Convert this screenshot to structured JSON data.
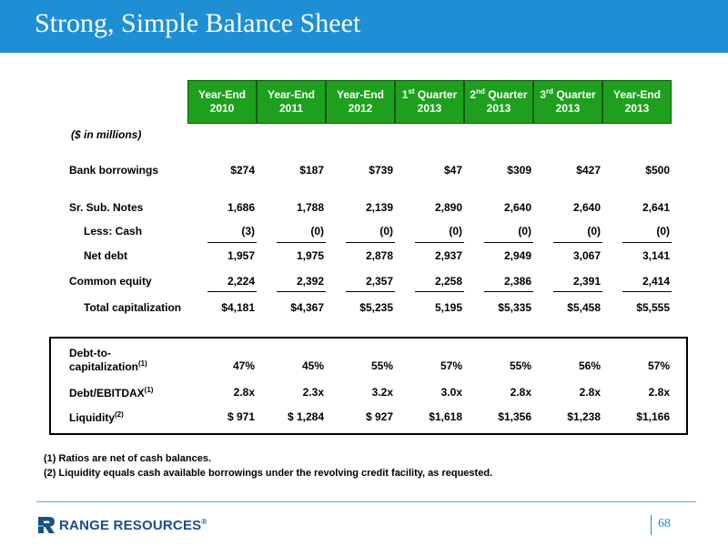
{
  "title": "Strong, Simple Balance Sheet",
  "columns": [
    {
      "line1": "Year-End",
      "sup": "",
      "line1_rest": "",
      "line2": "2010"
    },
    {
      "line1": "Year-End",
      "sup": "",
      "line1_rest": "",
      "line2": "2011"
    },
    {
      "line1": "Year-End",
      "sup": "",
      "line1_rest": "",
      "line2": "2012"
    },
    {
      "line1": "1",
      "sup": "st",
      "line1_rest": " Quarter",
      "line2": "2013"
    },
    {
      "line1": "2",
      "sup": "nd",
      "line1_rest": " Quarter",
      "line2": "2013"
    },
    {
      "line1": "3",
      "sup": "rd",
      "line1_rest": " Quarter",
      "line2": "2013"
    },
    {
      "line1": "Year-End",
      "sup": "",
      "line1_rest": "",
      "line2": "2013"
    }
  ],
  "units_label": "($ in millions)",
  "rows": [
    {
      "label": "Bank borrowings",
      "values": [
        "$274",
        "$187",
        "$739",
        "$47",
        "$309",
        "$427",
        "$500"
      ]
    },
    {
      "label": "Sr. Sub. Notes",
      "values": [
        "1,686",
        "1,788",
        "2,139",
        "2,890",
        "2,640",
        "2,640",
        "2,641"
      ]
    },
    {
      "label": "Less: Cash",
      "values": [
        "(3)",
        "(0)",
        "(0)",
        "(0)",
        "(0)",
        "(0)",
        "(0)"
      ]
    },
    {
      "label": "Net debt",
      "values": [
        "1,957",
        "1,975",
        "2,878",
        "2,937",
        "2,949",
        "3,067",
        "3,141"
      ]
    },
    {
      "label": "Common equity",
      "values": [
        "2,224",
        "2,392",
        "2,357",
        "2,258",
        "2,386",
        "2,391",
        "2,414"
      ]
    },
    {
      "label": "Total capitalization",
      "values": [
        "$4,181",
        "$4,367",
        "$5,235",
        "5,195",
        "$5,335",
        "$5,458",
        "$5,555"
      ]
    }
  ],
  "ratios": [
    {
      "label_line1": "Debt-to-",
      "label_line2": "capitalization",
      "sup": "(1)",
      "values": [
        "47%",
        "45%",
        "55%",
        "57%",
        "55%",
        "56%",
        "57%"
      ]
    },
    {
      "label_line1": "",
      "label_line2": "Debt/EBITDAX",
      "sup": "(1)",
      "values": [
        "2.8x",
        "2.3x",
        "3.2x",
        "3.0x",
        "2.8x",
        "2.8x",
        "2.8x"
      ]
    },
    {
      "label_line1": "",
      "label_line2": "Liquidity",
      "sup": "(2)",
      "values": [
        "$  971",
        "$  1,284",
        "$  927",
        "$1,618",
        "$1,356",
        "$1,238",
        "$1,166"
      ]
    }
  ],
  "footnotes": [
    "(1)  Ratios are net of cash balances.",
    "(2)  Liquidity equals cash available borrowings under the revolving credit facility, as requested."
  ],
  "footer": {
    "logo_text": "RANGE RESOURCES",
    "logo_reg": "®",
    "page_number": "68"
  },
  "colors": {
    "title_bar": "#1e8fd5",
    "header_green": "#1ea01e",
    "logo_navy": "#1a4f8a"
  }
}
